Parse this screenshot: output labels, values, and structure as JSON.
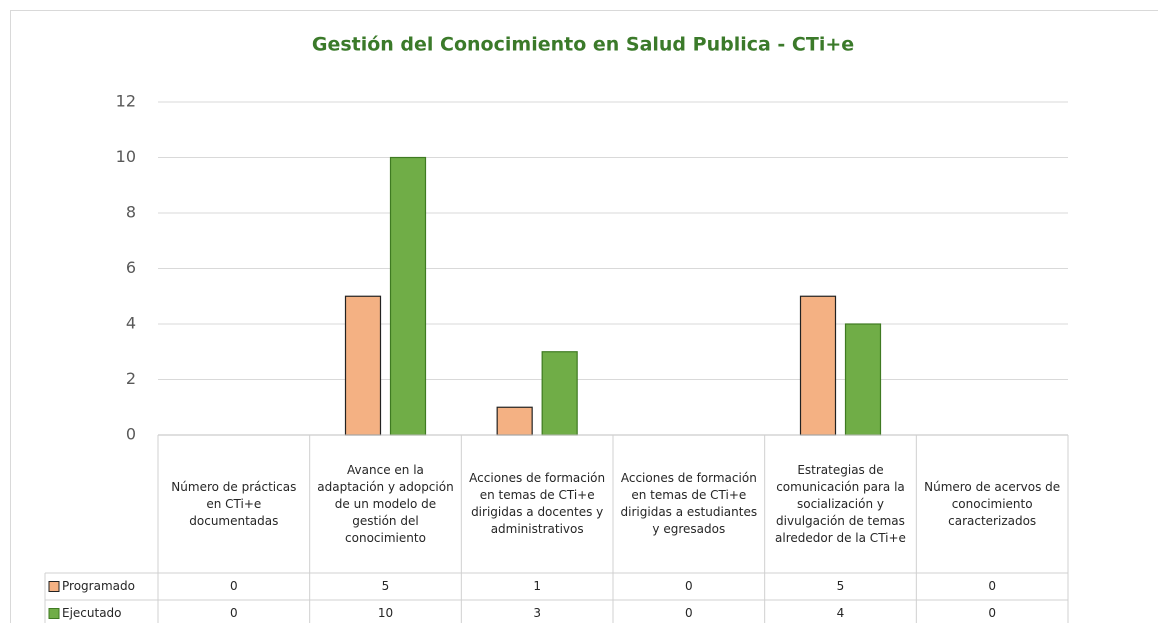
{
  "chart_data": {
    "type": "bar",
    "title": "Gestión del Conocimiento en Salud Publica - CTi+e",
    "categories": [
      "Número de prácticas en CTi+e documentadas",
      "Avance en la adaptación y adopción de un modelo de gestión del conocimiento",
      "Acciones de formación en temas de CTi+e dirigidas a docentes y administrativos",
      "Acciones de formación en temas de CTi+e dirigidas a estudiantes y egresados",
      "Estrategias de comunicación para la socialización y divulgación de temas alrededor de la CTi+e",
      "Número de acervos de conocimiento caracterizados"
    ],
    "series": [
      {
        "name": "Programado",
        "color": "#f4b183",
        "values": [
          0,
          5,
          1,
          0,
          5,
          0
        ]
      },
      {
        "name": "Ejecutado",
        "color": "#70ad47",
        "values": [
          0,
          10,
          3,
          0,
          4,
          0
        ]
      }
    ],
    "ylim": [
      0,
      12
    ],
    "yticks": [
      0,
      2,
      4,
      6,
      8,
      10,
      12
    ],
    "grid": true
  }
}
